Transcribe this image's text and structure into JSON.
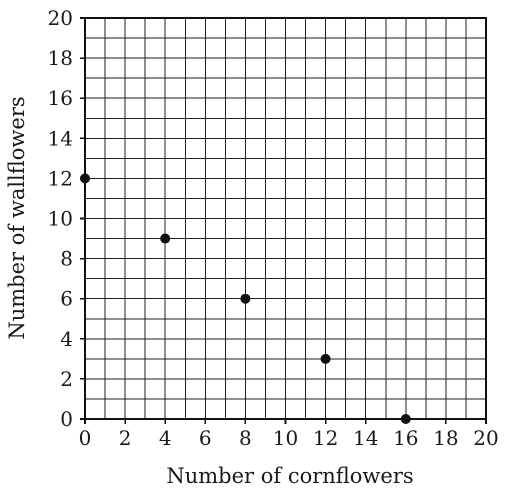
{
  "chart_data": {
    "type": "scatter",
    "title": "",
    "xlabel": "Number of cornflowers",
    "ylabel": "Number of wallflowers",
    "xlim": [
      0,
      20
    ],
    "ylim": [
      0,
      20
    ],
    "x_ticks": [
      0,
      2,
      4,
      6,
      8,
      10,
      12,
      14,
      16,
      18,
      20
    ],
    "y_ticks": [
      0,
      2,
      4,
      6,
      8,
      10,
      12,
      14,
      16,
      18,
      20
    ],
    "grid": true,
    "grid_minor_step": 1,
    "points": [
      {
        "x": 0,
        "y": 12
      },
      {
        "x": 4,
        "y": 9
      },
      {
        "x": 8,
        "y": 6
      },
      {
        "x": 12,
        "y": 3
      },
      {
        "x": 16,
        "y": 0
      }
    ],
    "marker_color": "#111111"
  }
}
